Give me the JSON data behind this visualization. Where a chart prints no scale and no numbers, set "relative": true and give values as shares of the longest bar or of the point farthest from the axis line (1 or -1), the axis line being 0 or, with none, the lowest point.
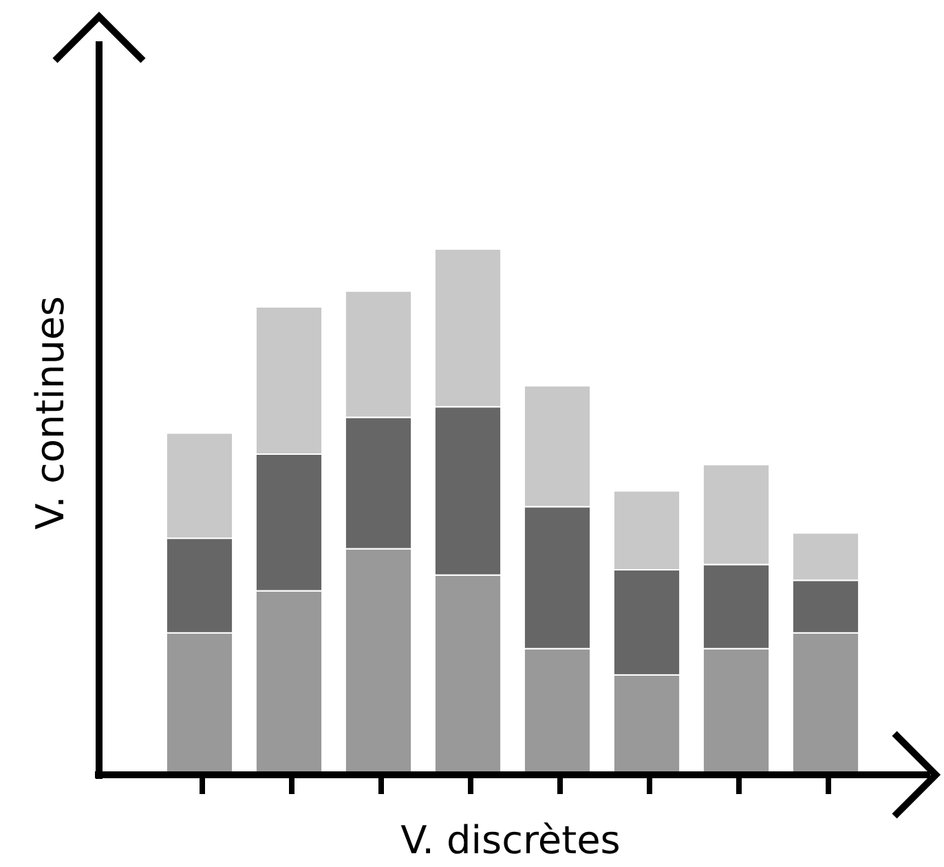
{
  "chart_data": {
    "type": "bar",
    "stacked": true,
    "relative": true,
    "xlabel": "V. discrètes",
    "ylabel": "V. continues",
    "categories": [
      null,
      null,
      null,
      null,
      null,
      null,
      null,
      null
    ],
    "series": [
      {
        "color": "#999999",
        "values": [
          0.27,
          0.35,
          0.43,
          0.38,
          0.24,
          0.19,
          0.24,
          0.27
        ]
      },
      {
        "color": "#666666",
        "values": [
          0.18,
          0.26,
          0.25,
          0.32,
          0.27,
          0.2,
          0.16,
          0.1
        ]
      },
      {
        "color": "#c8c8c8",
        "values": [
          0.2,
          0.28,
          0.24,
          0.3,
          0.23,
          0.15,
          0.19,
          0.09
        ]
      }
    ]
  }
}
